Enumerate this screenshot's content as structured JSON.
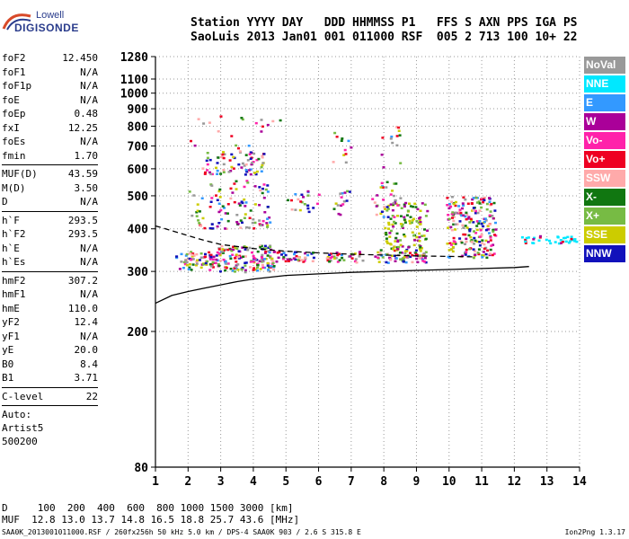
{
  "logo": {
    "top": "Lowell",
    "bottom": "DIGISONDE"
  },
  "header": {
    "line1": "Station YYYY DAY   DDD HHMMSS P1   FFS S AXN PPS IGA PS",
    "line2": "SaoLuis 2013 Jan01 001 011000 RSF  005 2 713 100 10+ 22"
  },
  "params": [
    {
      "name": "foF2",
      "value": "12.450"
    },
    {
      "name": "foF1",
      "value": "N/A"
    },
    {
      "name": "foF1p",
      "value": "N/A"
    },
    {
      "name": "foE",
      "value": "N/A"
    },
    {
      "name": "foEp",
      "value": "0.48"
    },
    {
      "name": "fxI",
      "value": "12.25"
    },
    {
      "name": "foEs",
      "value": "N/A"
    },
    {
      "name": "fmin",
      "value": "1.70"
    },
    {
      "sep": true
    },
    {
      "name": "MUF(D)",
      "value": "43.59"
    },
    {
      "name": "M(D)",
      "value": "3.50"
    },
    {
      "name": "D",
      "value": "N/A"
    },
    {
      "sep": true
    },
    {
      "name": "h`F",
      "value": "293.5"
    },
    {
      "name": "h`F2",
      "value": "293.5"
    },
    {
      "name": "h`E",
      "value": "N/A"
    },
    {
      "name": "h`Es",
      "value": "N/A"
    },
    {
      "sep": true
    },
    {
      "name": "hmF2",
      "value": "307.2"
    },
    {
      "name": "hmF1",
      "value": "N/A"
    },
    {
      "name": "hmE",
      "value": "110.0"
    },
    {
      "name": "yF2",
      "value": "12.4"
    },
    {
      "name": "yF1",
      "value": "N/A"
    },
    {
      "name": "yE",
      "value": "20.0"
    },
    {
      "name": "B0",
      "value": "8.4"
    },
    {
      "name": "B1",
      "value": "3.71"
    },
    {
      "sep": true
    },
    {
      "name": "C-level",
      "value": "22"
    },
    {
      "sep": true
    }
  ],
  "auto": [
    "Auto:",
    "Artist5",
    "500200"
  ],
  "legend": [
    {
      "label": "NoVal",
      "color": "#999999"
    },
    {
      "label": "NNE",
      "color": "#00e8ff"
    },
    {
      "label": "E",
      "color": "#3399ff"
    },
    {
      "label": "W",
      "color": "#aa0099"
    },
    {
      "label": "Vo-",
      "color": "#ff22aa"
    },
    {
      "label": "Vo+",
      "color": "#ee0022"
    },
    {
      "label": "SSW",
      "color": "#ffaaaa"
    },
    {
      "label": "X-",
      "color": "#117711"
    },
    {
      "label": "X+",
      "color": "#77bb44"
    },
    {
      "label": "SSE",
      "color": "#cccc00"
    },
    {
      "label": "NNW",
      "color": "#1111bb"
    }
  ],
  "footer": {
    "line1": "D     100  200  400  600  800 1000 1500 3000 [km]",
    "line2": "MUF  12.8 13.0 13.7 14.8 16.5 18.8 25.7 43.6 [MHz]",
    "line3": "SAA0K_2013001011000.RSF / 260fx256h 50 kHz 5.0 km / DPS-4 SAA0K 903 / 2.6 S 315.8 E",
    "version": "Ion2Png 1.3.17"
  },
  "chart_data": {
    "type": "scatter",
    "title": "",
    "xlabel": "",
    "ylabel": "",
    "xlim": [
      1,
      14
    ],
    "ylim": [
      80,
      1280
    ],
    "yscale": "log",
    "x_ticks": [
      1,
      2,
      3,
      4,
      5,
      6,
      7,
      8,
      9,
      10,
      11,
      12,
      13,
      14
    ],
    "y_ticks": [
      80,
      200,
      300,
      400,
      500,
      600,
      700,
      800,
      900,
      1000,
      1100,
      1280
    ],
    "grid": true,
    "legend_position": "right",
    "series": [
      {
        "name": "trace-lower",
        "style": "solid",
        "x": [
          1.0,
          1.5,
          2.0,
          2.5,
          3.0,
          3.5,
          4.0,
          5.0,
          6.0,
          7.0,
          8.0,
          9.0,
          10.0,
          11.0,
          12.0,
          12.45
        ],
        "y": [
          242,
          255,
          262,
          268,
          274,
          280,
          285,
          292,
          295,
          298,
          300,
          302,
          304,
          306,
          308,
          310
        ]
      },
      {
        "name": "trace-upper",
        "style": "dashed",
        "x": [
          1.0,
          1.5,
          2.0,
          2.5,
          3.0,
          4.0,
          5.0,
          6.0,
          7.0,
          8.0,
          9.0,
          10.0,
          10.8
        ],
        "y": [
          408,
          395,
          382,
          370,
          360,
          350,
          344,
          340,
          337,
          335,
          333,
          332,
          331
        ]
      }
    ],
    "scatter_clusters": [
      {
        "x": [
          1.6,
          2.9
        ],
        "y": [
          305,
          345
        ],
        "density": 0.95
      },
      {
        "x": [
          2.9,
          4.6
        ],
        "y": [
          300,
          360
        ],
        "density": 0.95
      },
      {
        "x": [
          4.6,
          5.9
        ],
        "y": [
          320,
          345
        ],
        "density": 0.8
      },
      {
        "x": [
          6.2,
          7.4
        ],
        "y": [
          320,
          345
        ],
        "density": 0.8
      },
      {
        "x": [
          7.7,
          9.3
        ],
        "y": [
          320,
          350
        ],
        "density": 0.95
      },
      {
        "x": [
          8.0,
          9.3
        ],
        "y": [
          345,
          480
        ],
        "density": 0.55
      },
      {
        "x": [
          9.9,
          11.4
        ],
        "y": [
          330,
          500
        ],
        "density": 0.7
      },
      {
        "x": [
          12.2,
          13.9
        ],
        "y": [
          365,
          385
        ],
        "density": 0.85
      },
      {
        "x": [
          2.4,
          4.3
        ],
        "y": [
          580,
          680
        ],
        "density": 0.5
      },
      {
        "x": [
          2.0,
          4.5
        ],
        "y": [
          400,
          560
        ],
        "density": 0.25
      },
      {
        "x": [
          5.0,
          6.0
        ],
        "y": [
          450,
          520
        ],
        "density": 0.3
      },
      {
        "x": [
          6.4,
          7.0
        ],
        "y": [
          440,
          520
        ],
        "density": 0.3
      },
      {
        "x": [
          7.6,
          8.5
        ],
        "y": [
          430,
          560
        ],
        "density": 0.3
      },
      {
        "x": [
          6.4,
          7.0
        ],
        "y": [
          620,
          790
        ],
        "density": 0.15
      },
      {
        "x": [
          7.9,
          8.5
        ],
        "y": [
          600,
          810
        ],
        "density": 0.15
      },
      {
        "x": [
          2.0,
          4.8
        ],
        "y": [
          690,
          880
        ],
        "density": 0.06
      }
    ]
  }
}
